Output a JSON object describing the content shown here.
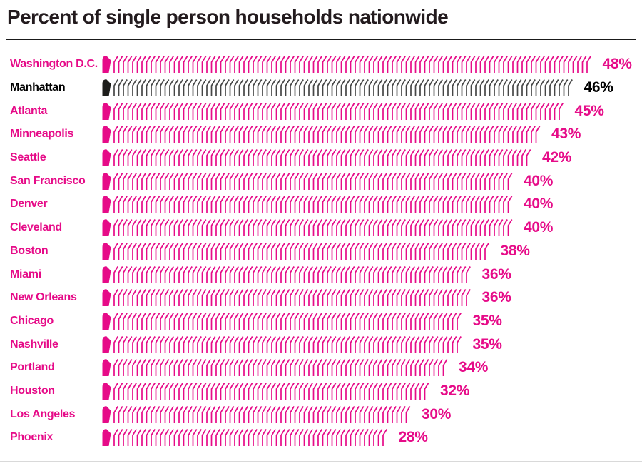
{
  "title": "Percent of single person households nationwide",
  "colors": {
    "title_text": "#231b1e",
    "accent_magenta": "#e60b88",
    "highlight_black": "#1d1d1b",
    "highlight_stroke": "#464646",
    "title_rule": "#1a1a1a",
    "bottom_rule": "#d9d9d9"
  },
  "chart_data": {
    "type": "bar",
    "title": "Percent of single person households nationwide",
    "orientation": "horizontal",
    "unit": "%",
    "xlim": [
      0,
      50
    ],
    "grid": false,
    "legend": false,
    "bar_style": "repeated chevron-stroke glyphs with solid leader cap",
    "categories": [
      "Washington D.C.",
      "Manhattan",
      "Atlanta",
      "Minneapolis",
      "Seattle",
      "San Francisco",
      "Denver",
      "Cleveland",
      "Boston",
      "Miami",
      "New Orleans",
      "Chicago",
      "Nashville",
      "Portland",
      "Houston",
      "Los Angeles",
      "Phoenix"
    ],
    "values": [
      48,
      46,
      45,
      43,
      42,
      40,
      40,
      40,
      38,
      36,
      36,
      35,
      35,
      34,
      32,
      30,
      28
    ],
    "labels": [
      "48%",
      "46%",
      "45%",
      "43%",
      "42%",
      "40%",
      "40%",
      "40%",
      "38%",
      "36%",
      "36%",
      "35%",
      "35%",
      "34%",
      "32%",
      "30%",
      "28%"
    ],
    "highlight_index": 1,
    "highlight_category": "Manhattan",
    "bar_color": "#e60b88",
    "highlight_bar_color": "#464646",
    "highlight_leader_color": "#1d1d1b",
    "label_color": "#e60b88",
    "highlight_label_color": "#000000"
  }
}
